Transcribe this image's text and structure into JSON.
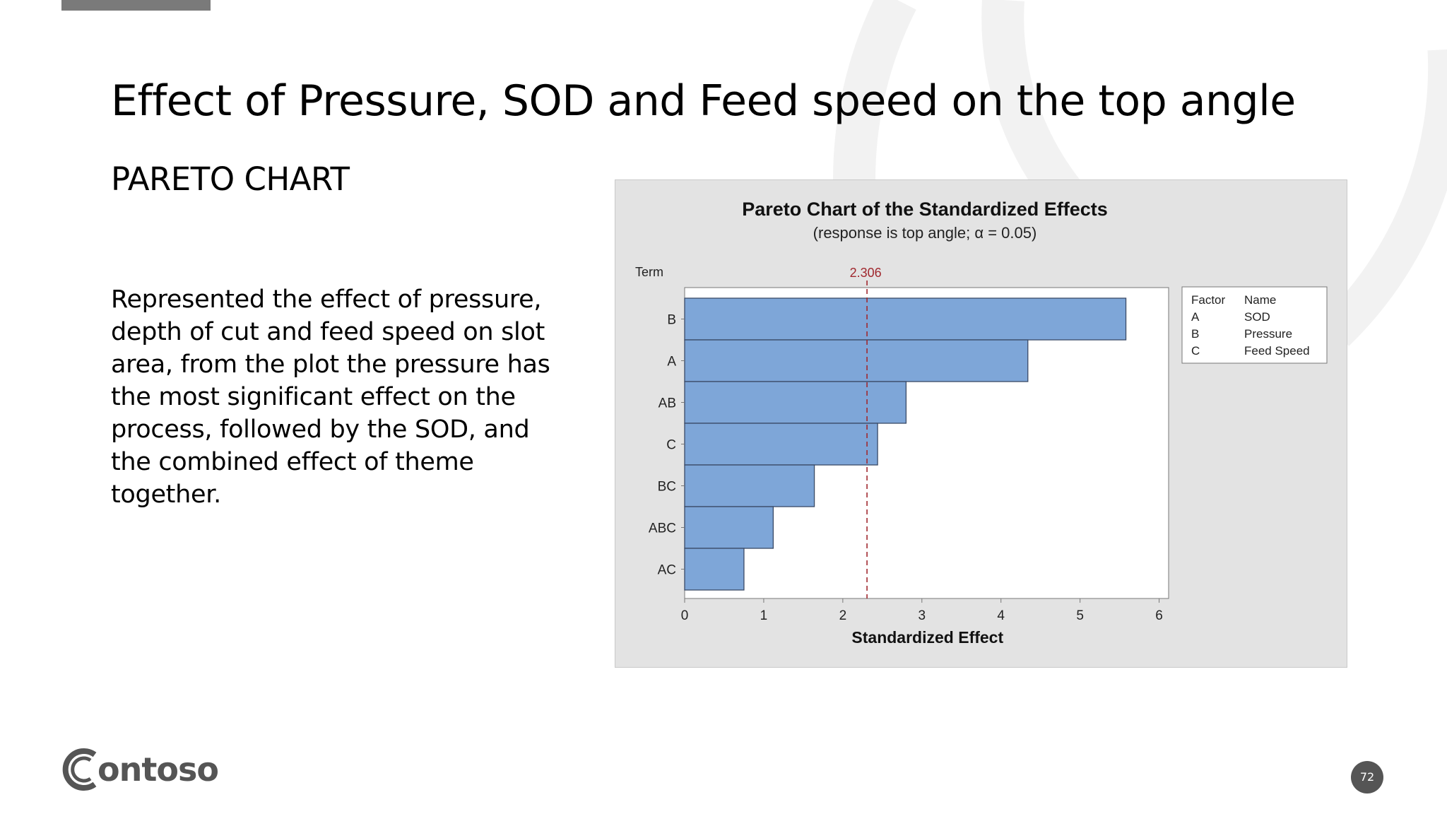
{
  "slide": {
    "title": "Effect of Pressure, SOD and Feed speed on the top angle",
    "subtitle": "PARETO CHART",
    "body": "Represented the effect of pressure, depth of cut and feed speed on slot area, from the plot the pressure has the most significant effect on the process, followed by the SOD, and the combined effect of theme together.",
    "logo_text": "ontoso",
    "page_number": "72"
  },
  "chart_data": {
    "type": "bar",
    "orientation": "horizontal",
    "title": "Pareto Chart of the Standardized Effects",
    "subtitle": "(response is top angle; α = 0.05)",
    "xlabel": "Standardized Effect",
    "ylabel": "Term",
    "categories": [
      "B",
      "A",
      "AB",
      "C",
      "BC",
      "ABC",
      "AC"
    ],
    "values": [
      5.58,
      4.34,
      2.8,
      2.44,
      1.64,
      1.12,
      0.75
    ],
    "xlim": [
      0,
      6.12
    ],
    "xticks": [
      "0",
      "1",
      "2",
      "3",
      "4",
      "5",
      "6"
    ],
    "reference_line": {
      "value": 2.306,
      "label": "2.306",
      "color": "#a0282e"
    },
    "bar_color": "#7ea6d8",
    "legend": {
      "placement": "top-right",
      "header": [
        "Factor",
        "Name"
      ],
      "rows": [
        [
          "A",
          "SOD"
        ],
        [
          "B",
          "Pressure"
        ],
        [
          "C",
          "Feed Speed"
        ]
      ]
    }
  },
  "colors": {
    "panel_bg": "#e3e3e3",
    "plot_bg": "#ffffff",
    "page_badge": "#555555"
  }
}
